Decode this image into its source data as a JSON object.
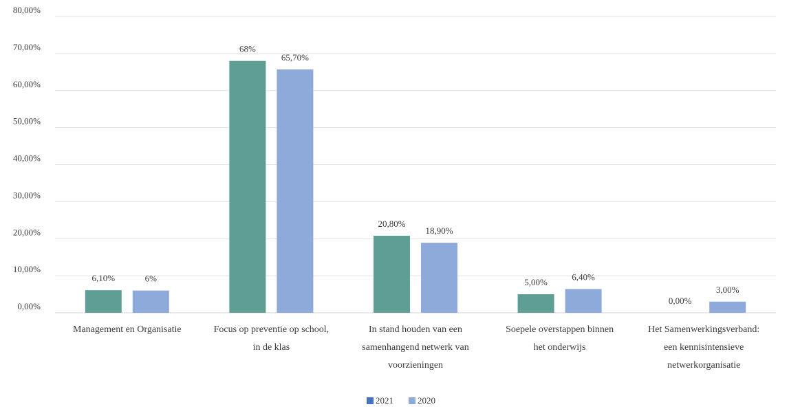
{
  "chart_data": {
    "type": "bar",
    "title": "",
    "xlabel": "",
    "ylabel": "",
    "ylim": [
      0,
      80
    ],
    "yticks": [
      "0,00%",
      "10,00%",
      "20,00%",
      "30,00%",
      "40,00%",
      "50,00%",
      "60,00%",
      "70,00%",
      "80,00%"
    ],
    "grid": true,
    "legend_position": "bottom",
    "categories": [
      [
        "Management en Organisatie"
      ],
      [
        "Focus op preventie op school,",
        "in de klas"
      ],
      [
        "In stand houden van een",
        "samenhangend netwerk van",
        "voorzieningen"
      ],
      [
        "Soepele overstappen binnen",
        "het onderwijs"
      ],
      [
        "Het Samenwerkingsverband:",
        "een kennisintensieve",
        "netwerkorganisatie"
      ]
    ],
    "series": [
      {
        "name": "2021",
        "color": "#5f9e94",
        "legend_color": "#4472c4",
        "values": [
          6.1,
          68,
          20.8,
          5.0,
          0.0
        ],
        "labels": [
          "6,10%",
          "68%",
          "20,80%",
          "5,00%",
          "0,00%"
        ]
      },
      {
        "name": "2020",
        "color": "#8eaadb",
        "legend_color": "#8eaadb",
        "values": [
          6,
          65.7,
          18.9,
          6.4,
          3.0
        ],
        "labels": [
          "6%",
          "65,70%",
          "18,90%",
          "6,40%",
          "3,00%"
        ]
      }
    ]
  }
}
